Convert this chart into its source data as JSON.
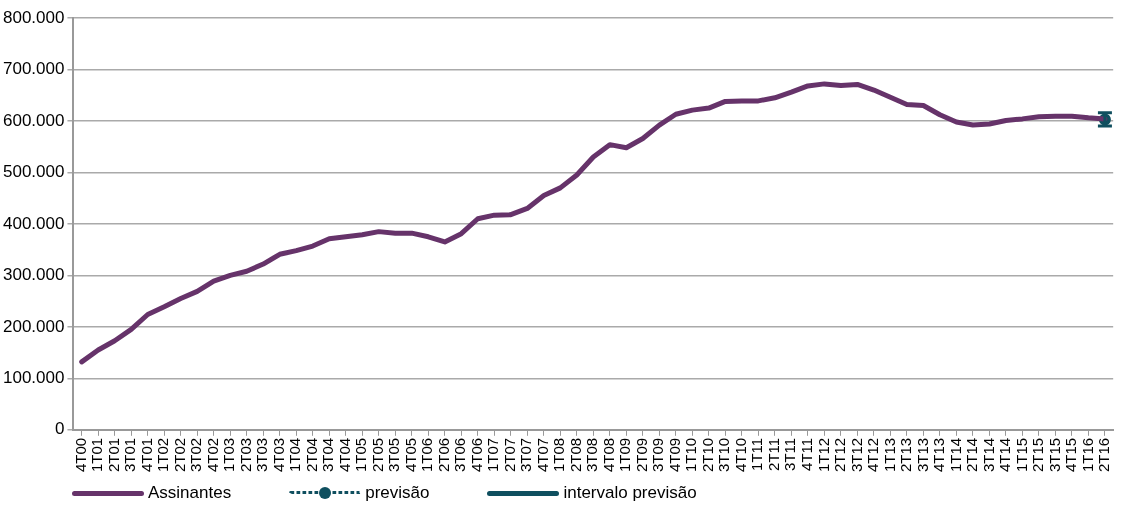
{
  "chart_data": {
    "type": "line",
    "categories": [
      "4T00",
      "1T01",
      "2T01",
      "3T01",
      "4T01",
      "1T02",
      "2T02",
      "3T02",
      "4T02",
      "1T03",
      "2T03",
      "3T03",
      "4T03",
      "1T04",
      "2T04",
      "3T04",
      "4T04",
      "1T05",
      "2T05",
      "3T05",
      "4T05",
      "1T06",
      "2T06",
      "3T06",
      "4T06",
      "1T07",
      "2T07",
      "3T07",
      "4T07",
      "1T08",
      "2T08",
      "3T08",
      "4T08",
      "1T09",
      "2T09",
      "3T09",
      "4T09",
      "1T10",
      "2T10",
      "3T10",
      "4T10",
      "1T11",
      "2T11",
      "3T11",
      "4T11",
      "1T12",
      "2T12",
      "3T12",
      "4T12",
      "1T13",
      "2T13",
      "3T13",
      "4T13",
      "1T14",
      "2T14",
      "3T14",
      "4T14",
      "1T15",
      "2T15",
      "3T15",
      "4T15",
      "1T16",
      "2T16"
    ],
    "series": [
      {
        "name": "Assinantes",
        "color": "#66336a",
        "line_style": "solid",
        "marker": "none",
        "values": [
          132000,
          155000,
          173000,
          195000,
          224000,
          239000,
          255000,
          269000,
          289000,
          300000,
          308000,
          322000,
          341000,
          348000,
          357000,
          371000,
          375000,
          379000,
          385000,
          382000,
          382000,
          375000,
          365000,
          381000,
          410000,
          417000,
          418000,
          430000,
          455000,
          470000,
          495000,
          530000,
          554000,
          548000,
          566000,
          592000,
          613000,
          621000,
          625000,
          638000,
          639000,
          639000,
          645000,
          656000,
          668000,
          672000,
          669000,
          671000,
          660000,
          646000,
          632000,
          630000,
          612000,
          598000,
          592000,
          594000,
          601000,
          604000,
          608000,
          609000,
          609000,
          606000,
          604000
        ]
      },
      {
        "name": "previsão",
        "color": "#0f4f5f",
        "line_style": "dotted",
        "marker": "circle",
        "values": [
          null,
          null,
          null,
          null,
          null,
          null,
          null,
          null,
          null,
          null,
          null,
          null,
          null,
          null,
          null,
          null,
          null,
          null,
          null,
          null,
          null,
          null,
          null,
          null,
          null,
          null,
          null,
          null,
          null,
          null,
          null,
          null,
          null,
          null,
          null,
          null,
          null,
          null,
          null,
          null,
          null,
          null,
          null,
          null,
          null,
          null,
          null,
          null,
          null,
          null,
          null,
          null,
          null,
          null,
          null,
          null,
          null,
          null,
          null,
          null,
          null,
          null,
          603000
        ],
        "errors": [
          null,
          null,
          null,
          null,
          null,
          null,
          null,
          null,
          null,
          null,
          null,
          null,
          null,
          null,
          null,
          null,
          null,
          null,
          null,
          null,
          null,
          null,
          null,
          null,
          null,
          null,
          null,
          null,
          null,
          null,
          null,
          null,
          null,
          null,
          null,
          null,
          null,
          null,
          null,
          null,
          null,
          null,
          null,
          null,
          null,
          null,
          null,
          null,
          null,
          null,
          null,
          null,
          null,
          null,
          null,
          null,
          null,
          null,
          null,
          null,
          null,
          null,
          [
            590000,
            616000
          ]
        ]
      },
      {
        "name": "intervalo previsão",
        "color": "#0f4f5f",
        "line_style": "solid",
        "marker": "none",
        "values": [
          null,
          null,
          null,
          null,
          null,
          null,
          null,
          null,
          null,
          null,
          null,
          null,
          null,
          null,
          null,
          null,
          null,
          null,
          null,
          null,
          null,
          null,
          null,
          null,
          null,
          null,
          null,
          null,
          null,
          null,
          null,
          null,
          null,
          null,
          null,
          null,
          null,
          null,
          null,
          null,
          null,
          null,
          null,
          null,
          null,
          null,
          null,
          null,
          null,
          null,
          null,
          null,
          null,
          null,
          null,
          null,
          null,
          null,
          null,
          null,
          null,
          null,
          null
        ]
      }
    ],
    "ylim": [
      0,
      800000
    ],
    "yticks": [
      0,
      {
        "value": 100000,
        "label": "100.000"
      },
      {
        "value": 200000,
        "label": "200.000"
      },
      {
        "value": 300000,
        "label": "300.000"
      },
      {
        "value": 400000,
        "label": "400.000"
      },
      {
        "value": 500000,
        "label": "500.000"
      },
      {
        "value": 600000,
        "label": "600.000"
      },
      {
        "value": 700000,
        "label": "700.000"
      },
      {
        "value": 800000,
        "label": "800.000"
      }
    ],
    "grid": "y",
    "legend": "bottom"
  }
}
